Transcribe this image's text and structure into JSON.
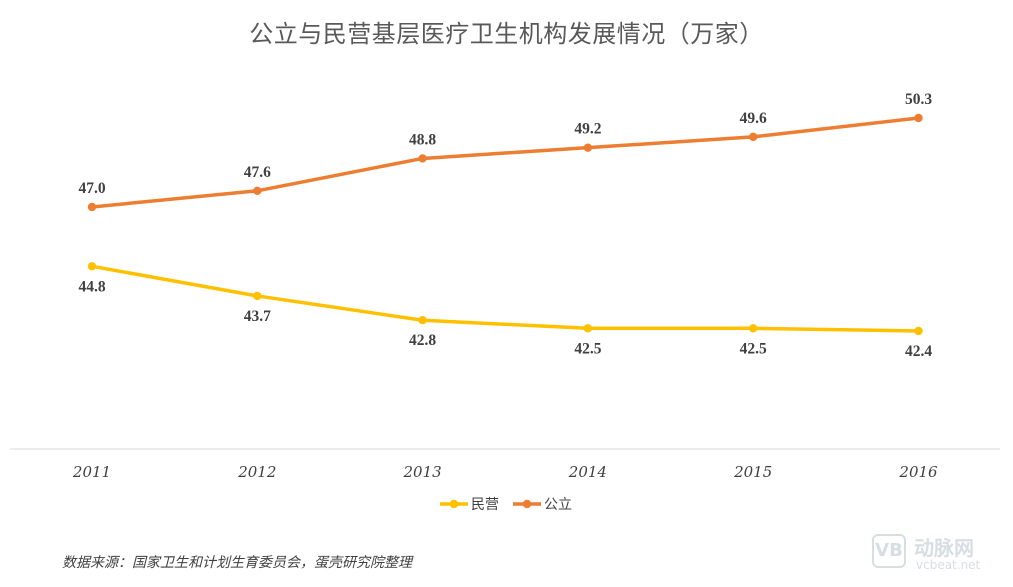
{
  "chart_data": {
    "type": "line",
    "title": "公立与民营基层医疗卫生机构发展情况（万家）",
    "categories": [
      "2011",
      "2012",
      "2013",
      "2014",
      "2015",
      "2016"
    ],
    "series": [
      {
        "name": "公立",
        "color": "#ED7D31",
        "values": [
          47.0,
          47.6,
          48.8,
          49.2,
          49.6,
          50.3
        ],
        "labels": [
          "47.0",
          "47.6",
          "48.8",
          "49.2",
          "49.6",
          "50.3"
        ],
        "label_position": "above"
      },
      {
        "name": "民营",
        "color": "#FFC000",
        "values": [
          44.8,
          43.7,
          42.8,
          42.5,
          42.5,
          42.4
        ],
        "labels": [
          "44.8",
          "43.7",
          "42.8",
          "42.5",
          "42.5",
          "42.4"
        ],
        "label_position": "below"
      }
    ],
    "legend": {
      "position": "bottom",
      "items": [
        "民营",
        "公立"
      ]
    },
    "xlabel": "",
    "ylabel": "",
    "y_axis_visible": false,
    "grid": false
  },
  "source": "数据来源：国家卫生和计划生育委员会，蛋壳研究院整理",
  "watermark": {
    "logo_mark": "VB",
    "name": "动脉网",
    "url": "vcbeat.net"
  }
}
